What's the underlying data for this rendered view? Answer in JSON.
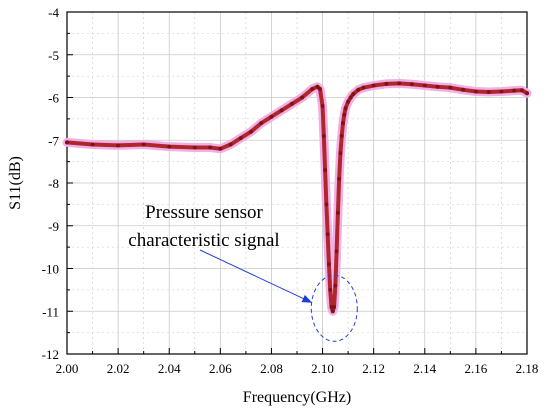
{
  "chart_data": {
    "type": "line",
    "xlabel": "Frequency(GHz)",
    "ylabel": "S11(dB)",
    "xlim": [
      2.0,
      2.18
    ],
    "ylim": [
      -12,
      -4
    ],
    "x_ticks": [
      "2.00",
      "2.02",
      "2.04",
      "2.06",
      "2.08",
      "2.10",
      "2.12",
      "2.14",
      "2.16",
      "2.18"
    ],
    "y_ticks": [
      "-4",
      "-5",
      "-6",
      "-7",
      "-8",
      "-9",
      "-10",
      "-11",
      "-12"
    ],
    "grid": true,
    "series": [
      {
        "x": [
          2.0,
          2.01,
          2.02,
          2.03,
          2.04,
          2.05,
          2.056,
          2.06,
          2.064,
          2.068,
          2.072,
          2.076,
          2.08,
          2.084,
          2.088,
          2.092,
          2.096,
          2.098,
          2.099,
          2.1,
          2.1005,
          2.101,
          2.1015,
          2.102,
          2.1025,
          2.103,
          2.1035,
          2.104,
          2.1045,
          2.105,
          2.1055,
          2.106,
          2.1065,
          2.107,
          2.1075,
          2.108,
          2.1085,
          2.109,
          2.11,
          2.111,
          2.112,
          2.114,
          2.116,
          2.12,
          2.125,
          2.13,
          2.135,
          2.14,
          2.145,
          2.15,
          2.155,
          2.16,
          2.165,
          2.17,
          2.175,
          2.178,
          2.18
        ],
        "y": [
          -7.05,
          -7.1,
          -7.12,
          -7.1,
          -7.15,
          -7.17,
          -7.17,
          -7.2,
          -7.1,
          -6.95,
          -6.8,
          -6.6,
          -6.45,
          -6.3,
          -6.15,
          -6.0,
          -5.8,
          -5.75,
          -5.8,
          -6.2,
          -6.9,
          -7.7,
          -8.5,
          -9.2,
          -9.9,
          -10.5,
          -10.9,
          -11.0,
          -10.9,
          -10.4,
          -9.6,
          -8.7,
          -7.9,
          -7.3,
          -6.9,
          -6.6,
          -6.4,
          -6.25,
          -6.1,
          -6.0,
          -5.92,
          -5.82,
          -5.77,
          -5.72,
          -5.68,
          -5.67,
          -5.69,
          -5.72,
          -5.75,
          -5.77,
          -5.82,
          -5.86,
          -5.87,
          -5.86,
          -5.84,
          -5.83,
          -5.9
        ]
      }
    ],
    "annotation": {
      "lines": [
        "Pressure sensor",
        "characteristic signal"
      ],
      "target_x": 2.105,
      "target_y": -11.0
    },
    "colors": {
      "line": "#b0262c",
      "halo": "#f0b0e6",
      "marker": "#7e1418",
      "arrow": "#1f3fd1",
      "grid": "#c9c9c9"
    }
  }
}
